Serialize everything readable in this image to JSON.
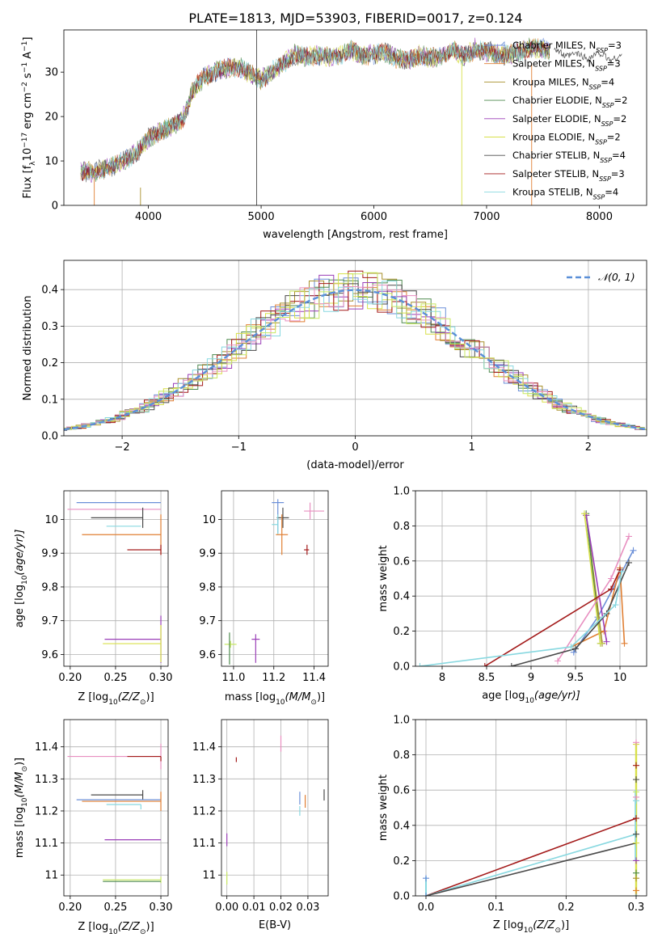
{
  "figure_title": "PLATE=1813, MJD=53903, FIBERID=0017, z=0.124",
  "colors": {
    "Chabrier MILES": "#6b8fd8",
    "Salpeter MILES": "#e07f33",
    "Kroupa MILES": "#a8902c",
    "Chabrier ELODIE": "#4f8a4f",
    "Salpeter ELODIE": "#9a3fb8",
    "Kroupa ELODIE": "#d8e04a",
    "Chabrier STELIB": "#4a4a4a",
    "Salpeter STELIB": "#a31a1a",
    "Kroupa STELIB": "#88d8e0",
    "Pink": "#e88fc0",
    "Lime": "#c8e860",
    "Normal": "#5a8fd8"
  },
  "chart_data": [
    {
      "id": "spectrum",
      "type": "line",
      "xlabel": "wavelength [Angstrom, rest frame]",
      "ylabel_parts": [
        "Flux [f",
        "λ",
        "10",
        "−17",
        " erg cm",
        "−2",
        " s",
        "−1",
        " A",
        "−1",
        "]"
      ],
      "xlim": [
        3250,
        8420
      ],
      "ylim": [
        0,
        39.5
      ],
      "xticks": [
        4000,
        5000,
        6000,
        7000,
        8000
      ],
      "yticks": [
        0,
        10,
        20,
        30
      ],
      "legend_position": "upper-right",
      "legend": [
        {
          "label": "Chabrier MILES, N",
          "sub": "SSP",
          "tail": "=3",
          "color": "#6b8fd8"
        },
        {
          "label": "Salpeter MILES, N",
          "sub": "SSP",
          "tail": "=3",
          "color": "#e07f33"
        },
        {
          "label": "Kroupa MILES, N",
          "sub": "SSP",
          "tail": "=4",
          "color": "#a8902c"
        },
        {
          "label": "Chabrier ELODIE, N",
          "sub": "SSP",
          "tail": "=2",
          "color": "#4f8a4f"
        },
        {
          "label": "Salpeter ELODIE, N",
          "sub": "SSP",
          "tail": "=2",
          "color": "#9a3fb8"
        },
        {
          "label": "Kroupa ELODIE, N",
          "sub": "SSP",
          "tail": "=2",
          "color": "#d8e04a"
        },
        {
          "label": "Chabrier STELIB, N",
          "sub": "SSP",
          "tail": "=4",
          "color": "#4a4a4a"
        },
        {
          "label": "Salpeter STELIB, N",
          "sub": "SSP",
          "tail": "=3",
          "color": "#a31a1a"
        },
        {
          "label": "Kroupa STELIB, N",
          "sub": "SSP",
          "tail": "=4",
          "color": "#88d8e0"
        }
      ],
      "series": [
        {
          "name": "Chabrier MILES",
          "x": [
            3400,
            3500,
            3600,
            3700,
            3800,
            3900,
            4000,
            4100,
            4200,
            4300,
            4400,
            4500,
            4600,
            4700,
            4800,
            4900,
            5000,
            5100,
            5200,
            5300,
            5400,
            5500,
            5600,
            5700,
            5800,
            5900,
            6000,
            6100,
            6200,
            6300,
            6400,
            6500,
            6600,
            6700,
            6800,
            6900,
            7000,
            7100,
            7200,
            7300,
            7400,
            7500,
            7600
          ],
          "y": [
            7.8,
            7.4,
            8.2,
            9.0,
            10.4,
            12.0,
            15.2,
            16.6,
            17.6,
            19.2,
            26.0,
            29.0,
            30.2,
            30.8,
            31.2,
            29.8,
            28.2,
            30.2,
            32.0,
            34.0,
            33.4,
            33.8,
            33.4,
            33.6,
            35.0,
            33.8,
            34.0,
            34.4,
            33.2,
            32.4,
            33.8,
            33.2,
            33.6,
            35.2,
            33.4,
            35.4,
            34.6,
            34.2,
            33.8,
            34.8,
            35.6,
            35.2,
            34.6
          ]
        },
        {
          "name": "Chabrier STELIB",
          "x": [
            7600,
            7700,
            7800,
            7900,
            8000,
            8100,
            8200
          ],
          "y": [
            35.6,
            33.4,
            34.2,
            33.0,
            34.4,
            32.6,
            33.8
          ]
        }
      ],
      "marker_lines": [
        4960,
        6780,
        7400
      ]
    },
    {
      "id": "residuals",
      "type": "line",
      "xlabel": "(data-model)/error",
      "ylabel": "Normed distribution",
      "xlim": [
        -2.5,
        2.5
      ],
      "ylim": [
        0,
        0.48
      ],
      "xticks": [
        -2,
        -1,
        0,
        1,
        2
      ],
      "yticks": [
        0.0,
        0.1,
        0.2,
        0.3,
        0.4
      ],
      "xtick_labels": [
        "−2",
        "−1",
        "0",
        "1",
        "2"
      ],
      "grid": true,
      "legend_label": "𝒩(0, 1)",
      "legend_position": "upper-right",
      "series": [
        {
          "name": "𝒩(0, 1)",
          "function": "standard normal pdf"
        }
      ]
    },
    {
      "id": "age_vs_Z",
      "type": "scatter",
      "xlabel": "Z [log",
      "xlabel_sub": "10",
      "xlabel_tail": "(Z/Z",
      "xlabel_end": ")]",
      "ylabel": "age  [log",
      "ylabel_sub": "10",
      "ylabel_tail": "(age/yr)]",
      "xlim": [
        0.193,
        0.308
      ],
      "ylim": [
        9.565,
        10.085
      ],
      "xticks": [
        0.2,
        0.25,
        0.3
      ],
      "yticks": [
        9.6,
        9.7,
        9.8,
        9.9,
        10.0
      ],
      "xtick_labels": [
        "0.20",
        "0.25",
        "0.30"
      ],
      "grid": true,
      "points": [
        {
          "color": "#6b8fd8",
          "x": 0.29,
          "xerr": [
            0.083,
            0.01
          ],
          "y": 10.05,
          "yerr": [
            0.0,
            0.0
          ]
        },
        {
          "color": "#e88fc0",
          "x": 0.3,
          "xerr": [
            0.103,
            0.0
          ],
          "y": 10.03,
          "yerr": [
            0.0,
            0.0
          ]
        },
        {
          "color": "#4a4a4a",
          "x": 0.28,
          "xerr": [
            0.057,
            0.0
          ],
          "y": 10.005,
          "yerr": [
            0.06,
            0.06
          ]
        },
        {
          "color": "#88d8e0",
          "x": 0.278,
          "xerr": [
            0.038,
            0.0
          ],
          "y": 9.98,
          "yerr": [
            0.0,
            0.0
          ]
        },
        {
          "color": "#e07f33",
          "x": 0.3,
          "xerr": [
            0.087,
            0.0
          ],
          "y": 9.955,
          "yerr": [
            0.12,
            0.12
          ]
        },
        {
          "color": "#a31a1a",
          "x": 0.3,
          "xerr": [
            0.037,
            0.0
          ],
          "y": 9.91,
          "yerr": [
            0.03,
            0.03
          ]
        },
        {
          "color": "#9a3fb8",
          "x": 0.3,
          "xerr": [
            0.062,
            0.0
          ],
          "y": 9.645,
          "yerr": [
            0.14,
            0.14
          ]
        },
        {
          "color": "#d8e04a",
          "x": 0.3,
          "xerr": [
            0.064,
            0.0
          ],
          "y": 9.632,
          "yerr": [
            0.11,
            0.11
          ]
        }
      ]
    },
    {
      "id": "age_vs_mass",
      "type": "scatter",
      "xlabel": "mass [log",
      "xlabel_sub": "10",
      "xlabel_tail": "(M/M",
      "xlabel_end": ")]",
      "xlim": [
        10.94,
        11.47
      ],
      "ylim": [
        9.565,
        10.085
      ],
      "xticks": [
        11.0,
        11.2,
        11.4
      ],
      "yticks": [
        9.6,
        9.7,
        9.8,
        9.9,
        10.0
      ],
      "xtick_labels": [
        "11.0",
        "11.2",
        "11.4"
      ],
      "grid": true,
      "points": [
        {
          "color": "#6b8fd8",
          "x": 11.22,
          "xerr": [
            0.03,
            0.03
          ],
          "y": 10.05,
          "yerr": [
            0.18,
            0.02
          ]
        },
        {
          "color": "#e88fc0",
          "x": 11.38,
          "xerr": [
            0.03,
            0.07
          ],
          "y": 10.025,
          "yerr": [
            0.05,
            0.05
          ]
        },
        {
          "color": "#4a4a4a",
          "x": 11.245,
          "xerr": [
            0.03,
            0.03
          ],
          "y": 10.005,
          "yerr": [
            0.06,
            0.06
          ]
        },
        {
          "color": "#88d8e0",
          "x": 11.22,
          "xerr": [
            0.03,
            0.0
          ],
          "y": 9.985,
          "yerr": [
            0.06,
            0.06
          ]
        },
        {
          "color": "#e07f33",
          "x": 11.24,
          "xerr": [
            0.03,
            0.03
          ],
          "y": 9.955,
          "yerr": [
            0.12,
            0.12
          ]
        },
        {
          "color": "#a31a1a",
          "x": 11.365,
          "xerr": [
            0.015,
            0.01
          ],
          "y": 9.91,
          "yerr": [
            0.03,
            0.03
          ]
        },
        {
          "color": "#9a3fb8",
          "x": 11.11,
          "xerr": [
            0.02,
            0.02
          ],
          "y": 9.645,
          "yerr": [
            0.14,
            0.03
          ]
        },
        {
          "color": "#c8e860",
          "x": 10.985,
          "xerr": [
            0.03,
            0.03
          ],
          "y": 9.63,
          "yerr": [
            0.02,
            0.02
          ]
        },
        {
          "color": "#4f8a4f",
          "x": 10.98,
          "xerr": [
            0.0,
            0.0
          ],
          "y": 9.63,
          "yerr": [
            0.12,
            0.07
          ]
        }
      ]
    },
    {
      "id": "weight_vs_age",
      "type": "line",
      "xlabel": "age  [log",
      "xlabel_sub": "10",
      "xlabel_tail": "(age/yr)]",
      "ylabel": "mass weight",
      "xlim": [
        7.7,
        10.3
      ],
      "ylim": [
        0,
        1.0
      ],
      "xticks": [
        8.0,
        8.5,
        9.0,
        9.5,
        10.0
      ],
      "yticks": [
        0.0,
        0.2,
        0.4,
        0.6,
        0.8,
        1.0
      ],
      "grid": true,
      "series": [
        {
          "name": "Chabrier MILES",
          "color": "#6b8fd8",
          "x": [
            9.48,
            9.75,
            10.15
          ],
          "y": [
            0.08,
            0.28,
            0.66
          ]
        },
        {
          "name": "Salpeter MILES",
          "color": "#e07f33",
          "x": [
            9.45,
            9.82,
            10.0,
            10.05
          ],
          "y": [
            0.11,
            0.2,
            0.56,
            0.13
          ]
        },
        {
          "name": "Kroupa MILES",
          "color": "#a8902c",
          "x": [
            9.62,
            9.8
          ],
          "y": [
            0.86,
            0.13
          ]
        },
        {
          "name": "Chabrier ELODIE",
          "color": "#4f8a4f",
          "x": [
            9.62,
            9.78
          ],
          "y": [
            0.87,
            0.13
          ]
        },
        {
          "name": "Salpeter ELODIE",
          "color": "#9a3fb8",
          "x": [
            9.62,
            9.85
          ],
          "y": [
            0.86,
            0.14
          ]
        },
        {
          "name": "Kroupa ELODIE",
          "color": "#d8e04a",
          "x": [
            9.6,
            9.78
          ],
          "y": [
            0.87,
            0.13
          ]
        },
        {
          "name": "Pink",
          "color": "#e88fc0",
          "x": [
            9.3,
            9.9,
            10.1
          ],
          "y": [
            0.03,
            0.5,
            0.74
          ]
        },
        {
          "name": "Chabrier STELIB",
          "color": "#4a4a4a",
          "x": [
            8.78,
            9.5,
            9.85,
            10.1
          ],
          "y": [
            0.0,
            0.1,
            0.3,
            0.59
          ]
        },
        {
          "name": "Salpeter STELIB",
          "color": "#a31a1a",
          "x": [
            8.48,
            9.9,
            10.0
          ],
          "y": [
            0.0,
            0.44,
            0.55
          ]
        },
        {
          "name": "Kroupa STELIB",
          "color": "#88d8e0",
          "x": [
            7.75,
            9.45,
            9.95,
            10.02
          ],
          "y": [
            0.0,
            0.11,
            0.35,
            0.54
          ]
        }
      ]
    },
    {
      "id": "mass_vs_Z",
      "type": "scatter",
      "xlabel": "Z [log",
      "xlabel_sub": "10",
      "xlabel_tail": "(Z/Z",
      "xlabel_end": ")]",
      "ylabel": "mass [log",
      "ylabel_sub": "10",
      "ylabel_tail": "(M/M",
      "ylabel_end": ")]",
      "xlim": [
        0.193,
        0.308
      ],
      "ylim": [
        10.935,
        11.485
      ],
      "xticks": [
        0.2,
        0.25,
        0.3
      ],
      "yticks": [
        11.0,
        11.1,
        11.2,
        11.3,
        11.4
      ],
      "xtick_labels": [
        "0.20",
        "0.25",
        "0.30"
      ],
      "grid": true,
      "points": [
        {
          "color": "#e88fc0",
          "x": 0.3,
          "xerr": [
            0.103,
            0.0
          ],
          "y": 11.37,
          "yerr": [
            0.08,
            0.08
          ]
        },
        {
          "color": "#a31a1a",
          "x": 0.3,
          "xerr": [
            0.037,
            0.0
          ],
          "y": 11.37,
          "yerr": [
            0.03,
            0.0
          ]
        },
        {
          "color": "#4a4a4a",
          "x": 0.28,
          "xerr": [
            0.057,
            0.0
          ],
          "y": 11.25,
          "yerr": [
            0.03,
            0.03
          ]
        },
        {
          "color": "#6b8fd8",
          "x": 0.29,
          "xerr": [
            0.083,
            0.01
          ],
          "y": 11.235,
          "yerr": [
            0.0,
            0.0
          ]
        },
        {
          "color": "#e07f33",
          "x": 0.3,
          "xerr": [
            0.087,
            0.0
          ],
          "y": 11.23,
          "yerr": [
            0.06,
            0.06
          ]
        },
        {
          "color": "#88d8e0",
          "x": 0.278,
          "xerr": [
            0.038,
            0.0
          ],
          "y": 11.22,
          "yerr": [
            0.03,
            0.0
          ]
        },
        {
          "color": "#9a3fb8",
          "x": 0.3,
          "xerr": [
            0.062,
            0.0
          ],
          "y": 11.11,
          "yerr": [
            0.0,
            0.0
          ]
        },
        {
          "color": "#c8e860",
          "x": 0.3,
          "xerr": [
            0.064,
            0.0
          ],
          "y": 10.985,
          "yerr": [
            0.02,
            0.02
          ]
        },
        {
          "color": "#4f8a4f",
          "x": 0.3,
          "xerr": [
            0.064,
            0.0
          ],
          "y": 10.98,
          "yerr": [
            0.0,
            0.0
          ]
        }
      ]
    },
    {
      "id": "mass_vs_EBV",
      "type": "scatter",
      "xlabel": "E(B-V)",
      "xlim": [
        -0.002,
        0.0375
      ],
      "ylim": [
        10.935,
        11.485
      ],
      "xticks": [
        0.0,
        0.01,
        0.02,
        0.03
      ],
      "yticks": [
        11.0,
        11.1,
        11.2,
        11.3,
        11.4
      ],
      "xtick_labels": [
        "0.00",
        "0.01",
        "0.02",
        "0.03"
      ],
      "grid": true,
      "points": [
        {
          "color": "#e88fc0",
          "x": 0.02,
          "y": 11.41,
          "yerr": [
            0.05,
            0.05
          ]
        },
        {
          "color": "#a31a1a",
          "x": 0.0035,
          "y": 11.36,
          "yerr": [
            0.015,
            0.015
          ]
        },
        {
          "color": "#4a4a4a",
          "x": 0.036,
          "y": 11.25,
          "yerr": [
            0.035,
            0.035
          ]
        },
        {
          "color": "#6b8fd8",
          "x": 0.027,
          "y": 11.24,
          "yerr": [
            0.04,
            0.04
          ]
        },
        {
          "color": "#e07f33",
          "x": 0.029,
          "y": 11.23,
          "yerr": [
            0.04,
            0.04
          ]
        },
        {
          "color": "#88d8e0",
          "x": 0.027,
          "y": 11.2,
          "yerr": [
            0.03,
            0.03
          ]
        },
        {
          "color": "#9a3fb8",
          "x": 0.0,
          "y": 11.11,
          "yerr": [
            0.04,
            0.04
          ]
        },
        {
          "color": "#c8e860",
          "x": 0.0,
          "y": 10.99,
          "yerr": [
            0.04,
            0.04
          ]
        }
      ]
    },
    {
      "id": "weight_vs_Z",
      "type": "line",
      "xlabel": "Z [log",
      "xlabel_sub": "10",
      "xlabel_tail": "(Z/Z",
      "xlabel_end": ")]",
      "ylabel": "mass weight",
      "xlim": [
        -0.015,
        0.315
      ],
      "ylim": [
        0,
        1.0
      ],
      "xticks": [
        0.0,
        0.1,
        0.2,
        0.3
      ],
      "yticks": [
        0.0,
        0.2,
        0.4,
        0.6,
        0.8,
        1.0
      ],
      "xtick_labels": [
        "0.0",
        "0.1",
        "0.2",
        "0.3"
      ],
      "grid": true,
      "series": [
        {
          "name": "Salpeter STELIB",
          "color": "#a31a1a",
          "x": [
            0.0,
            0.3
          ],
          "y": [
            0.0,
            0.44
          ]
        },
        {
          "name": "Kroupa STELIB",
          "color": "#88d8e0",
          "x": [
            0.0,
            0.3
          ],
          "y": [
            0.0,
            0.35
          ]
        },
        {
          "name": "Chabrier STELIB",
          "color": "#4a4a4a",
          "x": [
            0.0,
            0.3
          ],
          "y": [
            0.0,
            0.3
          ]
        }
      ],
      "markers_at_zero": [
        0.0,
        0.1
      ],
      "markers_at_0_3": [
        0.0,
        0.03,
        0.1,
        0.13,
        0.2,
        0.3,
        0.35,
        0.44,
        0.54,
        0.56,
        0.59,
        0.66,
        0.74,
        0.86,
        0.87
      ]
    }
  ]
}
